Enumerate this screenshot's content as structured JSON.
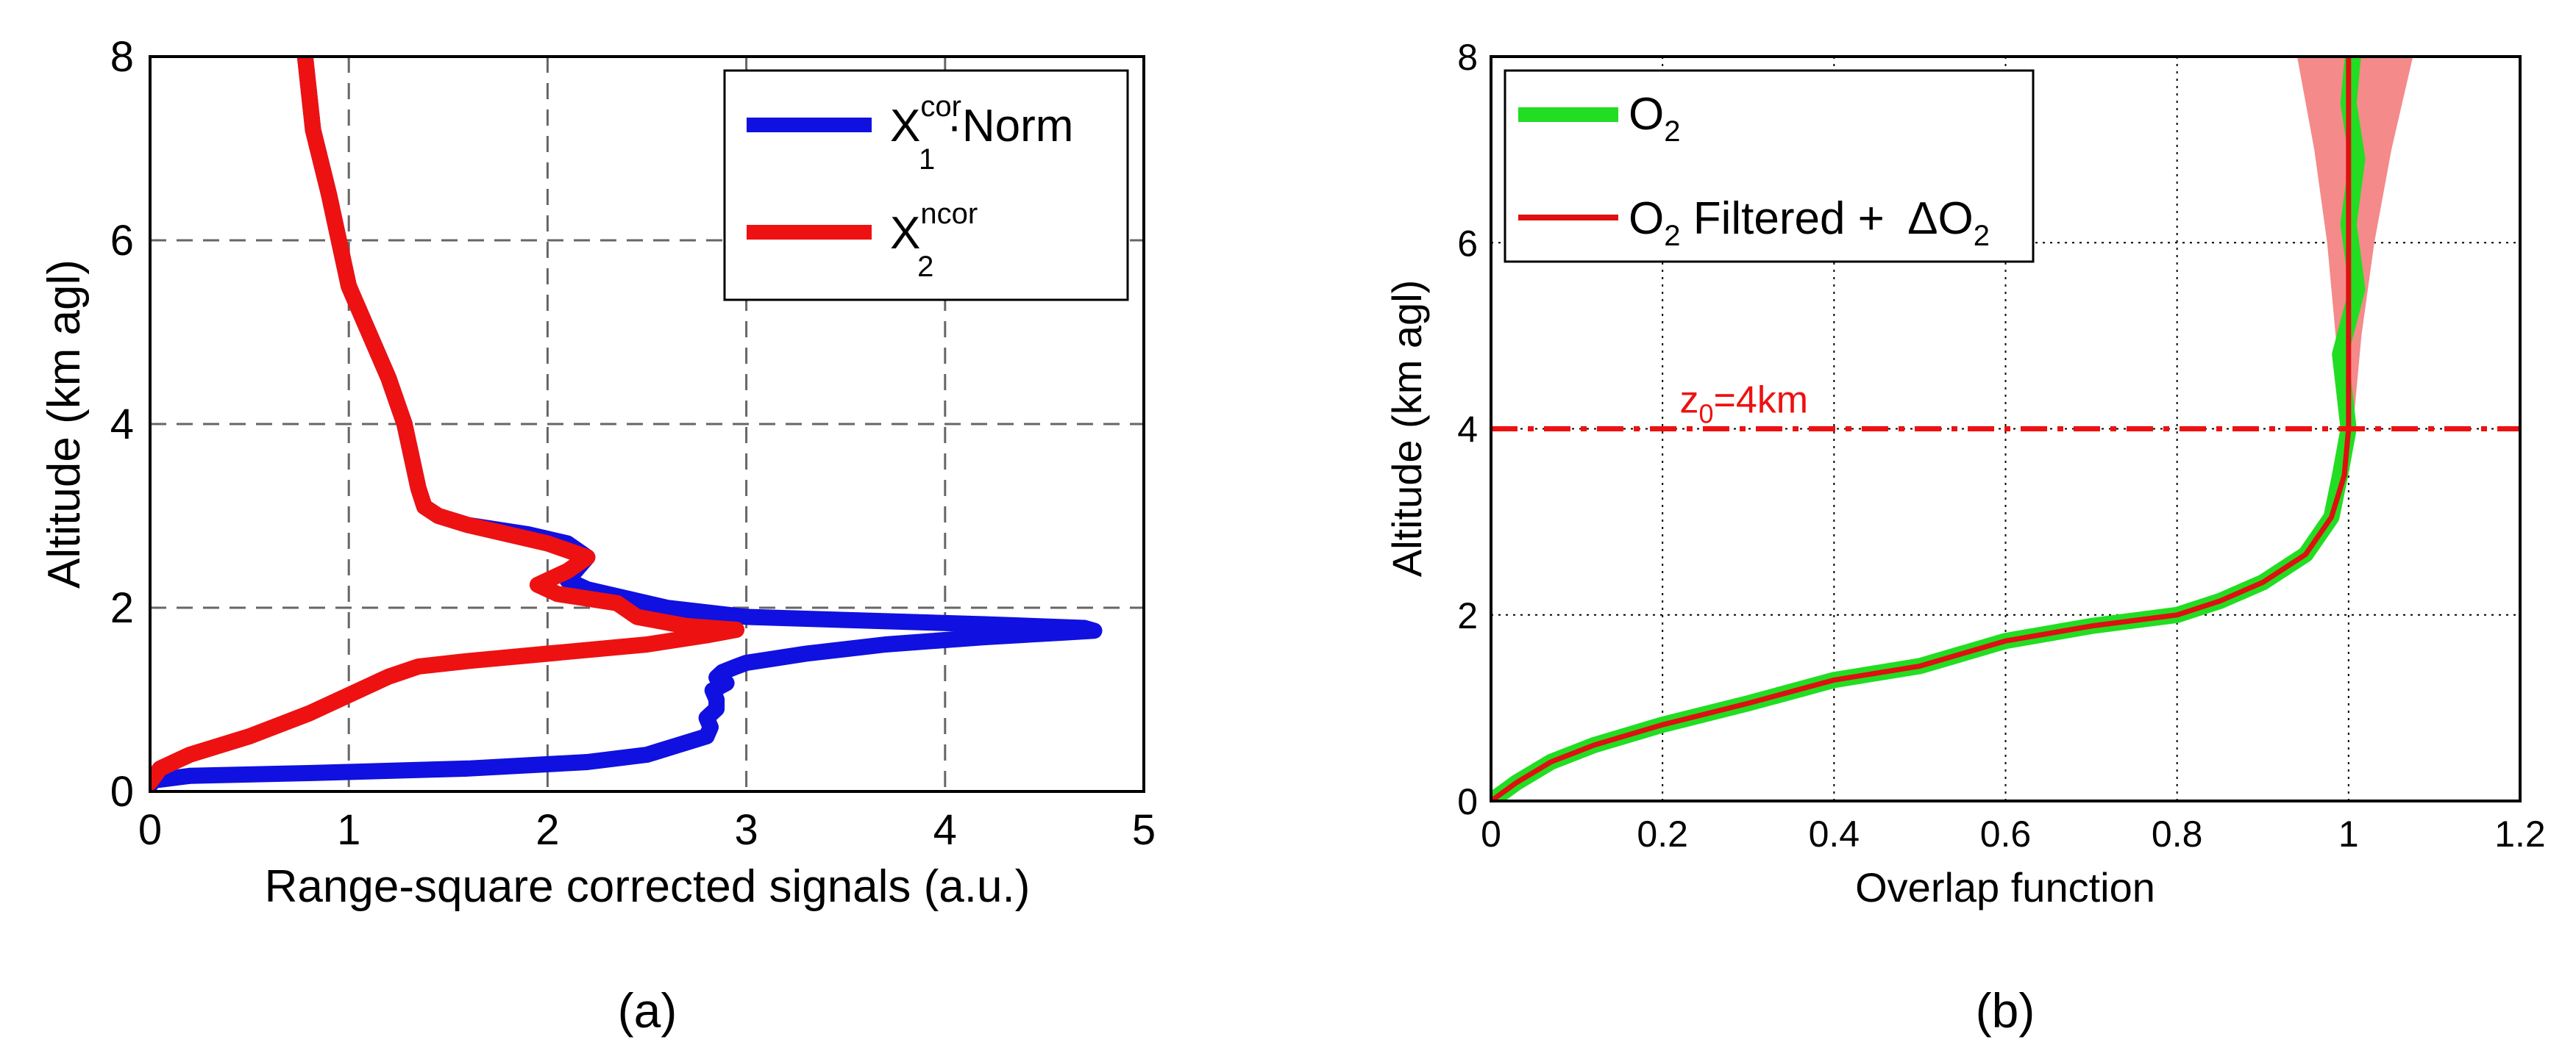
{
  "figure": {
    "panels": [
      "a",
      "b"
    ],
    "captions": [
      "(a)",
      "(b)"
    ]
  },
  "chart_data": [
    {
      "type": "line",
      "panel": "a",
      "title": "",
      "xlabel": "Range-square corrected signals (a.u.)",
      "ylabel": "Altitude (km agl)",
      "xlim": [
        0,
        5
      ],
      "ylim": [
        0,
        8
      ],
      "xticks": [
        0,
        1,
        2,
        3,
        4,
        5
      ],
      "yticks": [
        0,
        2,
        4,
        6,
        8
      ],
      "grid": "dashed",
      "legend_position": "top-right",
      "colors": {
        "s1": "#1010e0",
        "s2": "#ee1111",
        "grid": "#666666"
      },
      "legend": [
        {
          "main": "X",
          "sup": "cor",
          "sub": "1",
          "tail": "·Norm",
          "color": "#1010e0"
        },
        {
          "main": "X",
          "sup": "ncor",
          "sub": "2",
          "tail": "",
          "color": "#ee1111"
        }
      ],
      "series": [
        {
          "name": "X1cor·Norm",
          "color": "#1010e0",
          "x": [
            0.0,
            0.02,
            0.2,
            0.8,
            1.6,
            2.2,
            2.5,
            2.65,
            2.8,
            2.82,
            2.8,
            2.85,
            2.85,
            2.83,
            2.9,
            2.85,
            2.88,
            2.95,
            3.0,
            3.3,
            3.7,
            4.2,
            4.6,
            4.75,
            4.7,
            4.2,
            3.6,
            3.0,
            2.6,
            2.4,
            2.2,
            2.1,
            2.2,
            2.1,
            1.9,
            1.6,
            1.45,
            1.38,
            1.35,
            1.32,
            1.28,
            1.2,
            1.1,
            1.0,
            0.95,
            0.9,
            0.82,
            0.78
          ],
          "y": [
            0.07,
            0.12,
            0.17,
            0.2,
            0.25,
            0.32,
            0.4,
            0.5,
            0.6,
            0.7,
            0.8,
            0.9,
            1.0,
            1.1,
            1.18,
            1.24,
            1.3,
            1.36,
            1.4,
            1.5,
            1.6,
            1.68,
            1.73,
            1.75,
            1.78,
            1.82,
            1.86,
            1.9,
            2.0,
            2.1,
            2.2,
            2.3,
            2.55,
            2.7,
            2.8,
            2.9,
            3.0,
            3.1,
            3.3,
            3.6,
            4.0,
            4.5,
            5.0,
            5.5,
            6.0,
            6.5,
            7.2,
            8.0
          ]
        },
        {
          "name": "X2ncor",
          "color": "#ee1111",
          "x": [
            0.0,
            0.05,
            0.2,
            0.5,
            0.8,
            1.0,
            1.2,
            1.35,
            1.6,
            2.0,
            2.5,
            2.8,
            2.95,
            2.7,
            2.45,
            2.35,
            2.2,
            2.05,
            1.95,
            2.1,
            2.2,
            2.0,
            1.8,
            1.6,
            1.45,
            1.38,
            1.35,
            1.32,
            1.28,
            1.2,
            1.1,
            1.0,
            0.95,
            0.9,
            0.82,
            0.78
          ],
          "y": [
            0.1,
            0.25,
            0.4,
            0.6,
            0.85,
            1.05,
            1.25,
            1.36,
            1.42,
            1.5,
            1.6,
            1.7,
            1.76,
            1.8,
            1.9,
            2.05,
            2.1,
            2.15,
            2.25,
            2.4,
            2.55,
            2.7,
            2.8,
            2.9,
            3.0,
            3.1,
            3.3,
            3.6,
            4.0,
            4.5,
            5.0,
            5.5,
            6.0,
            6.5,
            7.2,
            8.0
          ]
        }
      ]
    },
    {
      "type": "line",
      "panel": "b",
      "title": "",
      "xlabel": "Overlap function",
      "ylabel": "Altitude (km agl)",
      "xlim": [
        0,
        1.2
      ],
      "ylim": [
        0,
        8
      ],
      "xticks": [
        "0",
        "0.2",
        "0.4",
        "0.6",
        "0.8",
        "1",
        "1.2"
      ],
      "yticks": [
        "0",
        "2",
        "4",
        "6",
        "8"
      ],
      "grid": "dotted",
      "legend_position": "top-left",
      "colors": {
        "o2": "#22dd22",
        "filtered": "#dd1111",
        "uncertainty": "#f48a8a",
        "z0_line": "#ee1111"
      },
      "legend": [
        {
          "label": "O",
          "sub": "2",
          "tail": "",
          "color": "#22dd22"
        },
        {
          "label": "O",
          "sub": "2",
          "tail": " Filtered + ",
          "delta": "ΔO",
          "delta_sub": "2",
          "color": "#dd1111"
        }
      ],
      "annotation": {
        "text": "z",
        "sub": "0",
        "tail": "=4km",
        "at_y": 4.0,
        "at_x": 0.22
      },
      "z0_km": 4.0,
      "series": [
        {
          "name": "O2",
          "color": "#22dd22",
          "x": [
            0.0,
            0.03,
            0.07,
            0.12,
            0.2,
            0.3,
            0.4,
            0.5,
            0.6,
            0.7,
            0.8,
            0.85,
            0.9,
            0.95,
            0.98,
            0.99,
            1.0,
            0.99,
            1.01,
            1.0,
            1.01,
            1.0,
            1.005
          ],
          "y": [
            0.0,
            0.2,
            0.42,
            0.6,
            0.82,
            1.05,
            1.3,
            1.45,
            1.72,
            1.88,
            2.0,
            2.15,
            2.35,
            2.65,
            3.05,
            3.5,
            4.0,
            4.8,
            5.5,
            6.2,
            6.9,
            7.5,
            8.0
          ]
        },
        {
          "name": "O2 Filtered + ΔO2",
          "color": "#dd1111",
          "x": [
            0.0,
            0.03,
            0.07,
            0.12,
            0.2,
            0.3,
            0.4,
            0.5,
            0.6,
            0.7,
            0.8,
            0.85,
            0.9,
            0.95,
            0.98,
            0.995,
            1.0,
            1.0,
            1.0,
            1.0,
            1.0
          ],
          "y": [
            0.0,
            0.2,
            0.42,
            0.6,
            0.82,
            1.05,
            1.3,
            1.45,
            1.72,
            1.88,
            2.0,
            2.15,
            2.35,
            2.65,
            3.05,
            3.5,
            4.0,
            5.0,
            6.0,
            7.0,
            8.0
          ]
        }
      ],
      "uncertainty_band": {
        "y": [
          4.0,
          5.0,
          6.0,
          7.0,
          8.0
        ],
        "lower": [
          0.995,
          0.985,
          0.975,
          0.96,
          0.94
        ],
        "upper": [
          1.005,
          1.015,
          1.03,
          1.05,
          1.075
        ]
      }
    }
  ]
}
